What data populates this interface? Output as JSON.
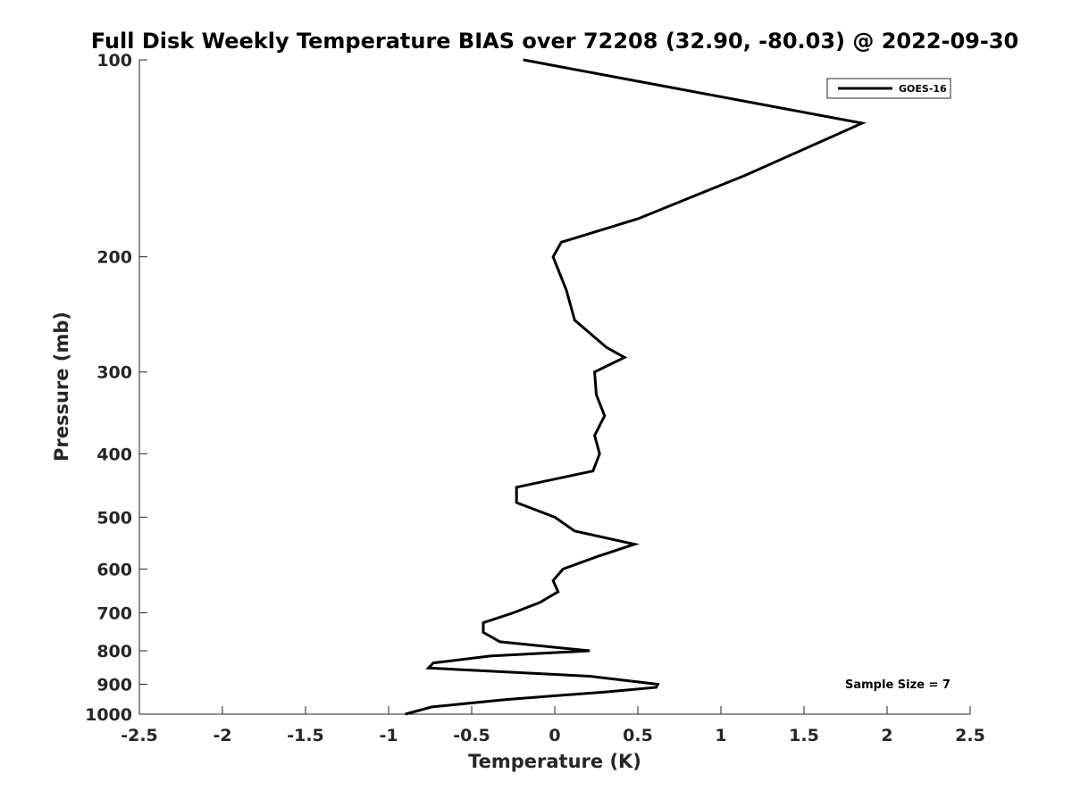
{
  "chart_data": {
    "type": "line",
    "title": "Full Disk Weekly Temperature BIAS over 72208 (32.90, -80.03) @ 2022-09-30",
    "xlabel": "Temperature (K)",
    "ylabel": "Pressure (mb)",
    "xlim": [
      -2.5,
      2.5
    ],
    "ylim": [
      1000,
      100
    ],
    "yscale": "log",
    "y_reversed": true,
    "xticks": [
      -2.5,
      -2,
      -1.5,
      -1,
      -0.5,
      0,
      0.5,
      1,
      1.5,
      2,
      2.5
    ],
    "xtick_labels": [
      "-2.5",
      "-2",
      "-1.5",
      "-1",
      "-0.5",
      "0",
      "0.5",
      "1",
      "1.5",
      "2",
      "2.5"
    ],
    "yticks": [
      100,
      200,
      300,
      400,
      500,
      600,
      700,
      800,
      900,
      1000
    ],
    "ytick_labels": [
      "100",
      "200",
      "300",
      "400",
      "500",
      "600",
      "700",
      "800",
      "900",
      "1000"
    ],
    "grid": false,
    "legend_position": "top-right",
    "annotation": "Sample Size = 7",
    "series": [
      {
        "name": "GOES-16",
        "color": "#000000",
        "points": [
          {
            "x": -0.19,
            "p": 100
          },
          {
            "x": 1.85,
            "p": 125
          },
          {
            "x": 1.15,
            "p": 150
          },
          {
            "x": 0.5,
            "p": 175
          },
          {
            "x": 0.04,
            "p": 190
          },
          {
            "x": -0.01,
            "p": 200
          },
          {
            "x": 0.07,
            "p": 225
          },
          {
            "x": 0.12,
            "p": 250
          },
          {
            "x": 0.31,
            "p": 275
          },
          {
            "x": 0.42,
            "p": 285
          },
          {
            "x": 0.24,
            "p": 300
          },
          {
            "x": 0.25,
            "p": 325
          },
          {
            "x": 0.3,
            "p": 350
          },
          {
            "x": 0.24,
            "p": 375
          },
          {
            "x": 0.27,
            "p": 400
          },
          {
            "x": 0.23,
            "p": 425
          },
          {
            "x": -0.23,
            "p": 450
          },
          {
            "x": -0.23,
            "p": 475
          },
          {
            "x": 0.0,
            "p": 500
          },
          {
            "x": 0.12,
            "p": 525
          },
          {
            "x": 0.48,
            "p": 550
          },
          {
            "x": 0.25,
            "p": 575
          },
          {
            "x": 0.05,
            "p": 600
          },
          {
            "x": -0.01,
            "p": 625
          },
          {
            "x": 0.02,
            "p": 650
          },
          {
            "x": -0.09,
            "p": 675
          },
          {
            "x": -0.25,
            "p": 700
          },
          {
            "x": -0.43,
            "p": 725
          },
          {
            "x": -0.43,
            "p": 750
          },
          {
            "x": -0.33,
            "p": 775
          },
          {
            "x": 0.21,
            "p": 800
          },
          {
            "x": -0.39,
            "p": 815
          },
          {
            "x": -0.73,
            "p": 835
          },
          {
            "x": -0.76,
            "p": 850
          },
          {
            "x": 0.21,
            "p": 875
          },
          {
            "x": 0.62,
            "p": 900
          },
          {
            "x": 0.61,
            "p": 910
          },
          {
            "x": 0.3,
            "p": 925
          },
          {
            "x": -0.3,
            "p": 950
          },
          {
            "x": -0.74,
            "p": 975
          },
          {
            "x": -0.9,
            "p": 1000
          }
        ]
      }
    ]
  }
}
